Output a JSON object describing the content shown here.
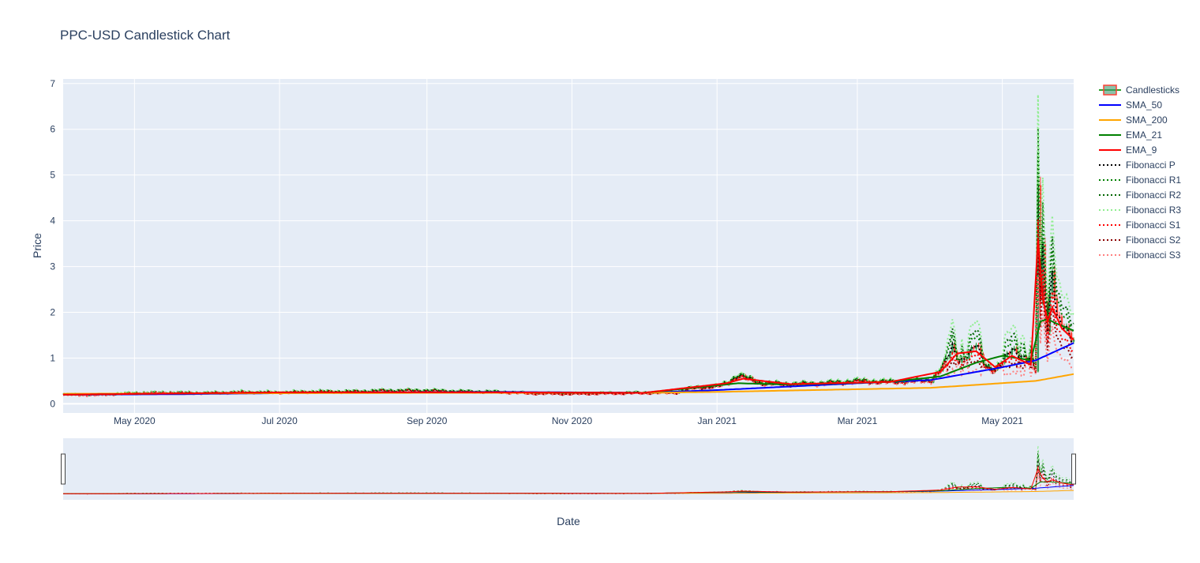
{
  "chart_data": {
    "type": "candlestick",
    "title": "PPC-USD Candlestick Chart",
    "xlabel": "Date",
    "ylabel": "Price",
    "xlim": [
      "2020-04-01",
      "2021-05-31"
    ],
    "ylim": [
      -0.2,
      7.1
    ],
    "x_ticks": [
      "2020-05-01",
      "2020-07-01",
      "2020-09-01",
      "2020-11-01",
      "2021-01-01",
      "2021-03-01",
      "2021-05-01"
    ],
    "x_tick_labels": [
      "May 2020",
      "Jul 2020",
      "Sep 2020",
      "Nov 2020",
      "Jan 2021",
      "Mar 2021",
      "May 2021"
    ],
    "y_ticks": [
      0,
      1,
      2,
      3,
      4,
      5,
      6,
      7
    ],
    "y_tick_labels": [
      "0",
      "1",
      "2",
      "3",
      "4",
      "5",
      "6",
      "7"
    ],
    "grid": true,
    "legend_position": "right",
    "rangeslider": true,
    "close_series": {
      "dates": [
        "2020-04-01",
        "2020-04-15",
        "2020-05-01",
        "2020-05-15",
        "2020-06-01",
        "2020-06-15",
        "2020-07-01",
        "2020-07-15",
        "2020-08-01",
        "2020-08-15",
        "2020-09-01",
        "2020-09-15",
        "2020-10-01",
        "2020-10-15",
        "2020-11-01",
        "2020-11-15",
        "2020-12-01",
        "2020-12-15",
        "2020-12-22",
        "2021-01-01",
        "2021-01-05",
        "2021-01-10",
        "2021-01-20",
        "2021-02-01",
        "2021-02-15",
        "2021-03-01",
        "2021-03-15",
        "2021-03-25",
        "2021-04-01",
        "2021-04-06",
        "2021-04-10",
        "2021-04-13",
        "2021-04-17",
        "2021-04-20",
        "2021-04-24",
        "2021-04-28",
        "2021-05-01",
        "2021-05-05",
        "2021-05-10",
        "2021-05-13",
        "2021-05-15",
        "2021-05-16",
        "2021-05-17",
        "2021-05-18",
        "2021-05-20",
        "2021-05-22",
        "2021-05-24",
        "2021-05-27",
        "2021-05-31"
      ],
      "values": [
        0.2,
        0.19,
        0.24,
        0.25,
        0.24,
        0.26,
        0.25,
        0.27,
        0.27,
        0.29,
        0.29,
        0.27,
        0.26,
        0.23,
        0.22,
        0.23,
        0.24,
        0.25,
        0.35,
        0.38,
        0.45,
        0.62,
        0.45,
        0.43,
        0.45,
        0.5,
        0.48,
        0.5,
        0.52,
        0.8,
        1.25,
        0.95,
        1.05,
        1.3,
        0.85,
        0.72,
        0.9,
        1.25,
        0.98,
        0.95,
        0.75,
        5.0,
        2.2,
        3.6,
        1.6,
        2.9,
        1.8,
        1.7,
        1.45
      ]
    },
    "series": [
      {
        "name": "Candlesticks",
        "type": "candlestick",
        "increasing_color": "#3d9970",
        "decreasing_color": "#ff4136"
      },
      {
        "name": "SMA_50",
        "color": "#0000ff",
        "dash": "solid",
        "dates": [
          "2020-04-01",
          "2020-05-20",
          "2020-08-01",
          "2020-10-01",
          "2020-12-01",
          "2021-01-01",
          "2021-03-01",
          "2021-04-01",
          "2021-05-01",
          "2021-05-15",
          "2021-05-31"
        ],
        "values": [
          0.2,
          0.21,
          0.25,
          0.26,
          0.24,
          0.3,
          0.45,
          0.52,
          0.8,
          0.95,
          1.33
        ]
      },
      {
        "name": "SMA_200",
        "color": "#ffa500",
        "dash": "solid",
        "dates": [
          "2020-04-01",
          "2020-09-01",
          "2020-12-01",
          "2021-01-01",
          "2021-04-01",
          "2021-05-15",
          "2021-05-31"
        ],
        "values": [
          0.22,
          0.24,
          0.24,
          0.26,
          0.35,
          0.5,
          0.65
        ]
      },
      {
        "name": "EMA_21",
        "color": "#008000",
        "dash": "solid",
        "dates": [
          "2020-04-01",
          "2020-07-01",
          "2020-10-01",
          "2020-12-01",
          "2021-01-10",
          "2021-02-01",
          "2021-03-15",
          "2021-04-05",
          "2021-04-20",
          "2021-05-01",
          "2021-05-13",
          "2021-05-17",
          "2021-05-20",
          "2021-05-24",
          "2021-05-31"
        ],
        "values": [
          0.2,
          0.25,
          0.25,
          0.24,
          0.45,
          0.42,
          0.48,
          0.6,
          0.9,
          1.05,
          0.95,
          1.8,
          1.85,
          1.75,
          1.6
        ]
      },
      {
        "name": "EMA_9",
        "color": "#ff0000",
        "dash": "solid",
        "dates": [
          "2020-04-01",
          "2020-07-01",
          "2020-10-01",
          "2020-12-01",
          "2021-01-05",
          "2021-01-12",
          "2021-02-01",
          "2021-03-15",
          "2021-04-05",
          "2021-04-12",
          "2021-04-20",
          "2021-04-28",
          "2021-05-05",
          "2021-05-13",
          "2021-05-16",
          "2021-05-18",
          "2021-05-20",
          "2021-05-22",
          "2021-05-26",
          "2021-05-31"
        ],
        "values": [
          0.2,
          0.25,
          0.25,
          0.24,
          0.45,
          0.55,
          0.43,
          0.48,
          0.7,
          1.1,
          1.15,
          0.8,
          1.05,
          0.85,
          3.6,
          2.3,
          1.8,
          2.1,
          1.65,
          1.4
        ]
      },
      {
        "name": "Fibonacci P",
        "color": "#000000",
        "dash": "dot",
        "offset": 0.0
      },
      {
        "name": "Fibonacci R1",
        "color": "#008000",
        "dash": "dot",
        "offset": 0.12
      },
      {
        "name": "Fibonacci R2",
        "color": "#006400",
        "dash": "dot",
        "offset": 0.2
      },
      {
        "name": "Fibonacci R3",
        "color": "#90ee90",
        "dash": "dot",
        "offset": 0.32
      },
      {
        "name": "Fibonacci S1",
        "color": "#ff0000",
        "dash": "dot",
        "offset": -0.12
      },
      {
        "name": "Fibonacci S2",
        "color": "#8b0000",
        "dash": "dot",
        "offset": -0.2
      },
      {
        "name": "Fibonacci S3",
        "color": "#ff7f7f",
        "dash": "dot",
        "offset": -0.32
      }
    ]
  },
  "colors": {
    "plot_bg": "#e5ecf6",
    "grid": "#ffffff",
    "text": "#2a3f5f",
    "slider_border": "#444444"
  }
}
